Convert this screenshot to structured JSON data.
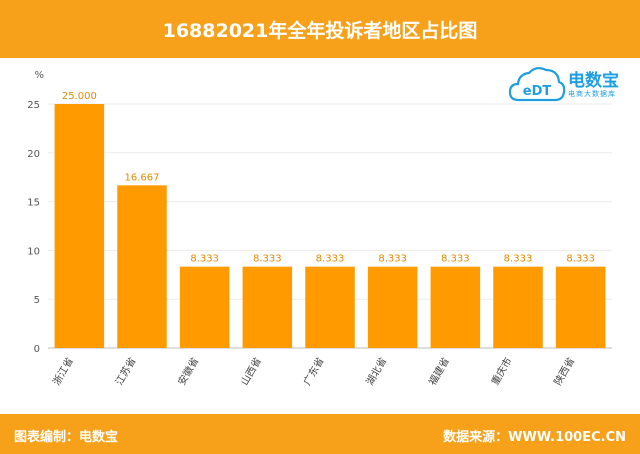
{
  "header": {
    "title": "16882021年全年投诉者地区占比图"
  },
  "footer": {
    "left": "图表编制：电数宝",
    "right": "数据来源：WWW.100EC.CN"
  },
  "logo": {
    "icon_text": "eDT",
    "brand": "电数宝",
    "sub": "电商大数据库",
    "icon": "cloud-logo-icon"
  },
  "colors": {
    "accent": "#f7a11a",
    "bar": "#ff9a00",
    "label": "#e08a00",
    "logo": "#1f9fe0"
  },
  "chart_data": {
    "type": "bar",
    "ylabel": "%",
    "ylim": [
      0,
      25
    ],
    "yticks": [
      0,
      5,
      10,
      15,
      20,
      25
    ],
    "grid": true,
    "categories": [
      "浙江省",
      "江苏省",
      "安徽省",
      "山西省",
      "广东省",
      "湖北省",
      "福建省",
      "重庆市",
      "陕西省"
    ],
    "values": [
      25.0,
      16.667,
      8.333,
      8.333,
      8.333,
      8.333,
      8.333,
      8.333,
      8.333
    ],
    "value_labels": [
      "25.000",
      "16.667",
      "8.333",
      "8.333",
      "8.333",
      "8.333",
      "8.333",
      "8.333",
      "8.333"
    ]
  }
}
